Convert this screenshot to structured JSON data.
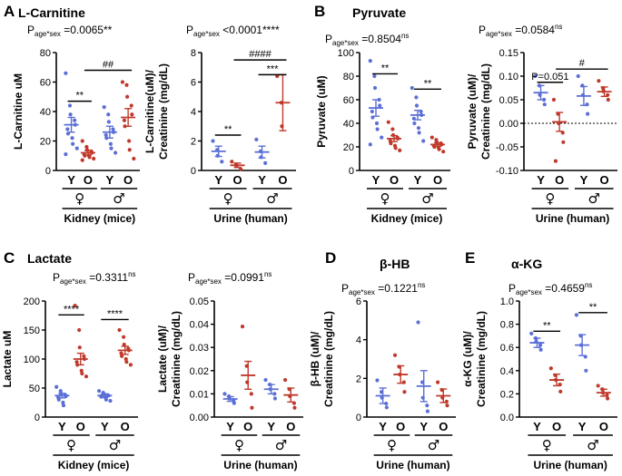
{
  "colors": {
    "young": "#5b6fd6",
    "old": "#c0392b",
    "axis": "#000000"
  },
  "panel_letters": [
    "A",
    "B",
    "C",
    "D",
    "E"
  ],
  "chart_data": [
    {
      "id": "carnitine-kidney",
      "type": "scatter",
      "letter": "A",
      "title": "L-Carnitine",
      "stat": {
        "prefix": "P",
        "sub": "age*sex",
        "text": " =0.0065**"
      },
      "ylabel": [
        "L-Carnitine uM"
      ],
      "ylim": [
        0,
        80
      ],
      "yticks": [
        0,
        20,
        40,
        60,
        80
      ],
      "zero_line": false,
      "categories": [
        "Y",
        "O",
        "Y",
        "O"
      ],
      "groups": [
        "♀",
        "♂"
      ],
      "xlabel": "Kidney (mice)",
      "series": [
        {
          "color": "young",
          "mean": 31,
          "sem": 5,
          "points": [
            66,
            44,
            38,
            34,
            31,
            28,
            25,
            22,
            18,
            15,
            11
          ]
        },
        {
          "color": "old",
          "mean": 12,
          "sem": 1.5,
          "points": [
            20,
            16,
            14,
            13,
            12,
            11,
            10,
            10,
            9,
            8,
            7
          ]
        },
        {
          "color": "young",
          "mean": 26,
          "sem": 4,
          "points": [
            43,
            38,
            33,
            28,
            26,
            24,
            22,
            18,
            15,
            12
          ]
        },
        {
          "color": "old",
          "mean": 36,
          "sem": 6,
          "points": [
            60,
            58,
            50,
            44,
            38,
            34,
            30,
            20,
            14,
            8
          ]
        }
      ],
      "brackets": [
        {
          "from": 0,
          "to": 1,
          "y": 47,
          "label": "**"
        },
        {
          "from": 1,
          "to": 3,
          "y": 68,
          "label": "##"
        }
      ]
    },
    {
      "id": "carnitine-urine",
      "type": "scatter",
      "letter": "",
      "title": "",
      "stat": {
        "prefix": "P",
        "sub": "age*sex",
        "text": " <0.0001****"
      },
      "ylabel": [
        "L-Carnitine(uM)/",
        "Creatinine (mg/dL)"
      ],
      "ylim": [
        0,
        8
      ],
      "yticks": [
        0,
        2,
        4,
        6,
        8
      ],
      "zero_line": false,
      "categories": [
        "Y",
        "O",
        "Y",
        "O"
      ],
      "groups": [
        "♀",
        "♂"
      ],
      "xlabel": "Urine (human)",
      "series": [
        {
          "color": "young",
          "mean": 1.3,
          "sem": 0.35,
          "points": [
            2.0,
            1.4,
            1.0,
            0.6
          ]
        },
        {
          "color": "old",
          "mean": 0.35,
          "sem": 0.15,
          "points": [
            0.6,
            0.4,
            0.3,
            0.1
          ]
        },
        {
          "color": "young",
          "mean": 1.25,
          "sem": 0.4,
          "points": [
            2.1,
            1.3,
            0.9,
            0.5
          ]
        },
        {
          "color": "old",
          "mean": 4.6,
          "sem": 1.9,
          "points": [
            6.4,
            4.6,
            3.0
          ]
        }
      ],
      "brackets": [
        {
          "from": 0,
          "to": 1,
          "y": 2.4,
          "label": "**"
        },
        {
          "from": 2,
          "to": 3,
          "y": 6.5,
          "label": "***"
        },
        {
          "from": 1,
          "to": 3,
          "y": 7.5,
          "label": "####"
        }
      ]
    },
    {
      "id": "pyruvate-kidney",
      "type": "scatter",
      "letter": "B",
      "title": "Pyruvate",
      "stat": {
        "prefix": "P",
        "sub": "age*sex",
        "text": " =0.8504",
        "suffix": "ns"
      },
      "ylabel": [
        "Pyruvate (uM)"
      ],
      "ylim": [
        0,
        100
      ],
      "yticks": [
        0,
        20,
        40,
        60,
        80,
        100
      ],
      "zero_line": false,
      "categories": [
        "Y",
        "O",
        "Y",
        "O"
      ],
      "groups": [
        "♀",
        "♂"
      ],
      "xlabel": "Kidney (mice)",
      "series": [
        {
          "color": "young",
          "mean": 53,
          "sem": 7,
          "points": [
            93,
            80,
            70,
            60,
            55,
            50,
            45,
            40,
            35,
            28,
            22
          ]
        },
        {
          "color": "old",
          "mean": 27,
          "sem": 2.5,
          "points": [
            41,
            35,
            30,
            28,
            27,
            25,
            23,
            21,
            19,
            17
          ]
        },
        {
          "color": "young",
          "mean": 47,
          "sem": 4,
          "points": [
            70,
            62,
            55,
            50,
            47,
            44,
            40,
            36,
            32,
            25
          ]
        },
        {
          "color": "old",
          "mean": 22,
          "sem": 1.5,
          "points": [
            28,
            26,
            24,
            23,
            22,
            21,
            20,
            19,
            18,
            16
          ]
        }
      ],
      "brackets": [
        {
          "from": 0,
          "to": 1,
          "y": 82,
          "label": "**"
        },
        {
          "from": 2,
          "to": 3,
          "y": 69,
          "label": "**"
        }
      ]
    },
    {
      "id": "pyruvate-urine",
      "type": "scatter",
      "letter": "",
      "title": "",
      "stat": {
        "prefix": "P",
        "sub": "age*sex",
        "text": " =0.0584",
        "suffix": "ns"
      },
      "ylabel": [
        "Pyruvate (uM)/",
        "Creatinine (mg/dL)"
      ],
      "ylim": [
        -0.1,
        0.15
      ],
      "yticks": [
        -0.1,
        -0.05,
        0.0,
        0.05,
        0.1,
        0.15
      ],
      "zero_line": true,
      "categories": [
        "Y",
        "O",
        "Y",
        "O"
      ],
      "groups": [
        "♀",
        "♂"
      ],
      "xlabel": "Urine (human)",
      "series": [
        {
          "color": "young",
          "mean": 0.065,
          "sem": 0.015,
          "points": [
            0.1,
            0.08,
            0.06,
            0.05,
            0.04
          ]
        },
        {
          "color": "old",
          "mean": 0.003,
          "sem": 0.02,
          "points": [
            0.05,
            0.02,
            0.0,
            -0.02,
            -0.04,
            -0.08
          ]
        },
        {
          "color": "young",
          "mean": 0.058,
          "sem": 0.02,
          "points": [
            0.1,
            0.08,
            0.06,
            0.04,
            0.02
          ]
        },
        {
          "color": "old",
          "mean": 0.067,
          "sem": 0.01,
          "points": [
            0.09,
            0.075,
            0.068,
            0.06,
            0.05
          ]
        }
      ],
      "brackets": [
        {
          "from": 0,
          "to": 1,
          "y": 0.087,
          "label": "P=0.051"
        },
        {
          "from": 1,
          "to": 3,
          "y": 0.115,
          "label": "#"
        }
      ]
    },
    {
      "id": "lactate-kidney",
      "type": "scatter",
      "letter": "C",
      "title": "Lactate",
      "stat": {
        "prefix": "P",
        "sub": "age*sex",
        "text": " =0.3311",
        "suffix": "ns"
      },
      "ylabel": [
        "Lactate uM"
      ],
      "ylim": [
        0,
        200
      ],
      "yticks": [
        0,
        50,
        100,
        150,
        200
      ],
      "zero_line": false,
      "categories": [
        "Y",
        "O",
        "Y",
        "O"
      ],
      "groups": [
        "♀",
        "♂"
      ],
      "xlabel": "Kidney (mice)",
      "series": [
        {
          "color": "young",
          "mean": 37,
          "sem": 4,
          "points": [
            52,
            45,
            40,
            38,
            36,
            34,
            30,
            25,
            20
          ]
        },
        {
          "color": "old",
          "mean": 100,
          "sem": 10,
          "points": [
            192,
            150,
            120,
            105,
            100,
            95,
            90,
            80,
            75,
            70
          ]
        },
        {
          "color": "young",
          "mean": 37,
          "sem": 3,
          "points": [
            45,
            42,
            40,
            38,
            37,
            36,
            35,
            33,
            30,
            28
          ]
        },
        {
          "color": "old",
          "mean": 115,
          "sem": 7,
          "points": [
            150,
            138,
            125,
            118,
            115,
            110,
            105,
            100,
            95,
            90
          ]
        }
      ],
      "brackets": [
        {
          "from": 0,
          "to": 1,
          "y": 176,
          "label": "****"
        },
        {
          "from": 2,
          "to": 3,
          "y": 168,
          "label": "****"
        }
      ]
    },
    {
      "id": "lactate-urine",
      "type": "scatter",
      "letter": "",
      "title": "",
      "stat": {
        "prefix": "P",
        "sub": "age*sex",
        "text": " =0.0991",
        "suffix": "ns"
      },
      "ylabel": [
        "Lactate (uM)/",
        "Creatinine (mg/dL)"
      ],
      "ylim": [
        0,
        0.05
      ],
      "yticks": [
        0.0,
        0.01,
        0.02,
        0.03,
        0.04,
        0.05
      ],
      "zero_line": false,
      "categories": [
        "Y",
        "O",
        "Y",
        "O"
      ],
      "groups": [
        "♀",
        "♂"
      ],
      "xlabel": "Urine (human)",
      "series": [
        {
          "color": "young",
          "mean": 0.0078,
          "sem": 0.001,
          "points": [
            0.01,
            0.009,
            0.008,
            0.007,
            0.006
          ]
        },
        {
          "color": "old",
          "mean": 0.018,
          "sem": 0.006,
          "points": [
            0.039,
            0.022,
            0.015,
            0.01,
            0.004
          ]
        },
        {
          "color": "young",
          "mean": 0.012,
          "sem": 0.002,
          "points": [
            0.016,
            0.014,
            0.012,
            0.01,
            0.008
          ]
        },
        {
          "color": "old",
          "mean": 0.0095,
          "sem": 0.003,
          "points": [
            0.016,
            0.012,
            0.009,
            0.006,
            0.004
          ]
        }
      ],
      "brackets": []
    },
    {
      "id": "bhb-urine",
      "type": "scatter",
      "letter": "D",
      "title": "β-HB",
      "stat": {
        "prefix": "P",
        "sub": "age*sex",
        "text": " =0.1221",
        "suffix": "ns"
      },
      "ylabel": [
        "β-HB (uM)/",
        "Creatinine (mg/dL)"
      ],
      "ylim": [
        0,
        6
      ],
      "yticks": [
        0,
        2,
        4,
        6
      ],
      "zero_line": false,
      "categories": [
        "Y",
        "O",
        "Y",
        "O"
      ],
      "groups": [
        "♀",
        "♂"
      ],
      "xlabel": "Urine (human)",
      "series": [
        {
          "color": "young",
          "mean": 1.1,
          "sem": 0.4,
          "points": [
            1.9,
            1.3,
            1.0,
            0.7,
            0.5
          ]
        },
        {
          "color": "old",
          "mean": 2.2,
          "sem": 0.45,
          "points": [
            3.2,
            2.6,
            2.2,
            1.8,
            1.3
          ]
        },
        {
          "color": "young",
          "mean": 1.6,
          "sem": 0.8,
          "points": [
            4.9,
            1.8,
            1.0,
            0.6,
            0.3
          ]
        },
        {
          "color": "old",
          "mean": 1.1,
          "sem": 0.35,
          "points": [
            1.8,
            1.4,
            1.0,
            0.8,
            0.6
          ]
        }
      ],
      "brackets": []
    },
    {
      "id": "akg-urine",
      "type": "scatter",
      "letter": "E",
      "title": "α-KG",
      "stat": {
        "prefix": "P",
        "sub": "age*sex",
        "text": " =0.4659",
        "suffix": "ns"
      },
      "ylabel": [
        "α-KG (uM)/",
        "Creatinine (mg/dL)"
      ],
      "ylim": [
        0,
        1.0
      ],
      "yticks": [
        0.0,
        0.2,
        0.4,
        0.6,
        0.8,
        1.0
      ],
      "zero_line": false,
      "categories": [
        "Y",
        "O",
        "Y",
        "O"
      ],
      "groups": [
        "♀",
        "♂"
      ],
      "xlabel": "Urine (human)",
      "series": [
        {
          "color": "young",
          "mean": 0.64,
          "sem": 0.04,
          "points": [
            0.72,
            0.68,
            0.65,
            0.62,
            0.58
          ]
        },
        {
          "color": "old",
          "mean": 0.32,
          "sem": 0.05,
          "points": [
            0.42,
            0.36,
            0.32,
            0.28,
            0.22
          ]
        },
        {
          "color": "young",
          "mean": 0.62,
          "sem": 0.09,
          "points": [
            0.88,
            0.7,
            0.62,
            0.52,
            0.4
          ]
        },
        {
          "color": "old",
          "mean": 0.21,
          "sem": 0.03,
          "points": [
            0.27,
            0.24,
            0.21,
            0.19,
            0.16
          ]
        }
      ],
      "brackets": [
        {
          "from": 0,
          "to": 1,
          "y": 0.74,
          "label": "**"
        },
        {
          "from": 2,
          "to": 3,
          "y": 0.9,
          "label": "**"
        }
      ]
    }
  ]
}
